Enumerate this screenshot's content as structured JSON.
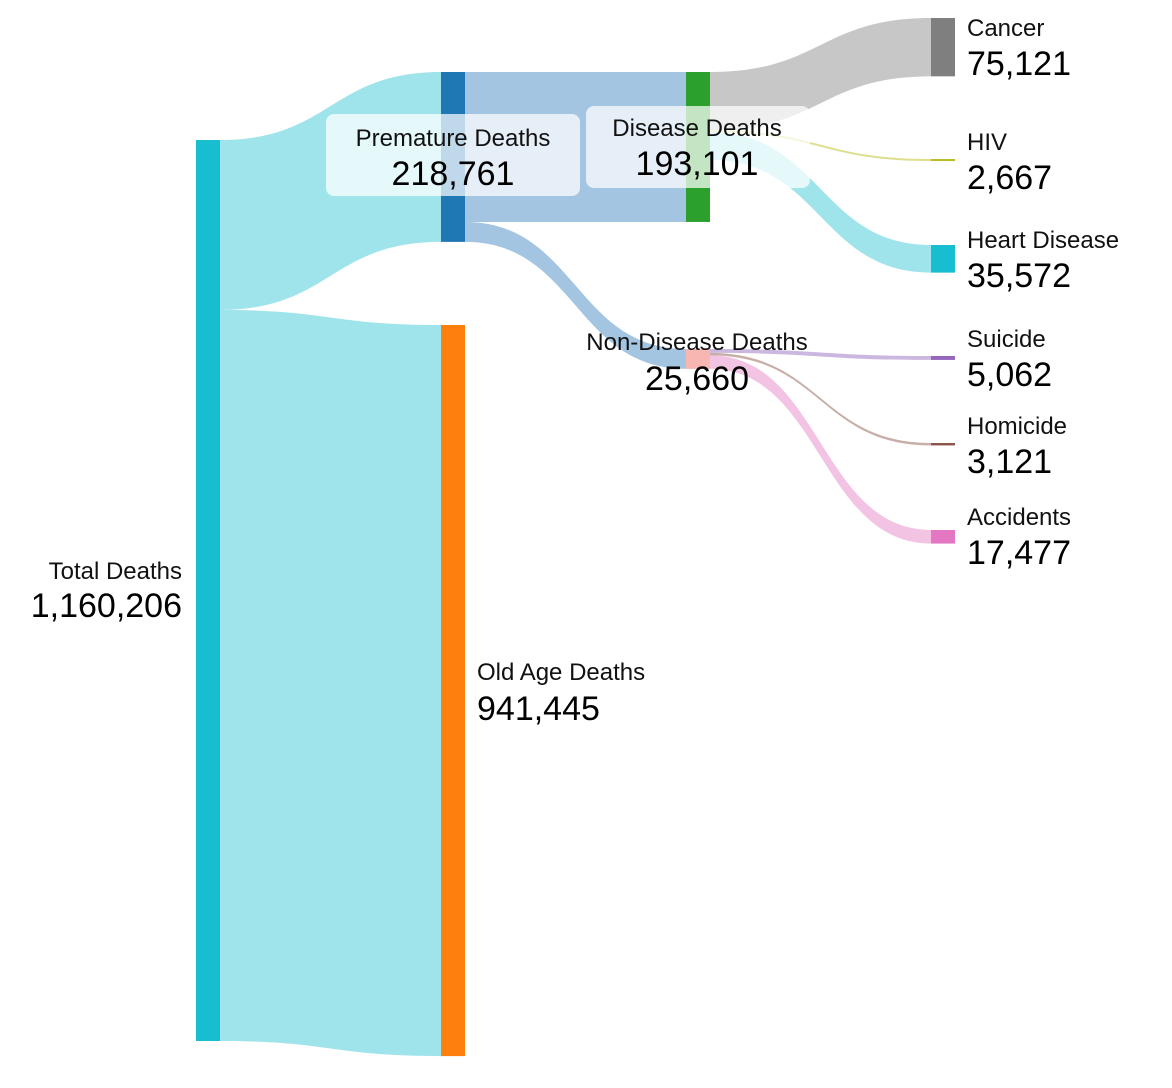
{
  "chart_data": {
    "type": "sankey",
    "title": "",
    "nodes": [
      {
        "id": "total",
        "name": "Total Deaths",
        "value": 1160206,
        "value_label": "1,160,206",
        "color": "#17becf",
        "column": 0
      },
      {
        "id": "premature",
        "name": "Premature Deaths",
        "value": 218761,
        "value_label": "218,761",
        "color": "#1f77b4",
        "column": 1
      },
      {
        "id": "oldage",
        "name": "Old Age Deaths",
        "value": 941445,
        "value_label": "941,445",
        "color": "#ff7f0e",
        "column": 1
      },
      {
        "id": "disease",
        "name": "Disease Deaths",
        "value": 193101,
        "value_label": "193,101",
        "color": "#2ca02c",
        "column": 2
      },
      {
        "id": "nondisease",
        "name": "Non-Disease Deaths",
        "value": 25660,
        "value_label": "25,660",
        "color": "#f7b6b2",
        "column": 2
      },
      {
        "id": "cancer",
        "name": "Cancer",
        "value": 75121,
        "value_label": "75,121",
        "color": "#7f7f7f",
        "column": 3
      },
      {
        "id": "hiv",
        "name": "HIV",
        "value": 2667,
        "value_label": "2,667",
        "color": "#bcbd22",
        "column": 3
      },
      {
        "id": "heart",
        "name": "Heart Disease",
        "value": 35572,
        "value_label": "35,572",
        "color": "#17becf",
        "column": 3
      },
      {
        "id": "suicide",
        "name": "Suicide",
        "value": 5062,
        "value_label": "5,062",
        "color": "#9467bd",
        "column": 3
      },
      {
        "id": "homicide",
        "name": "Homicide",
        "value": 3121,
        "value_label": "3,121",
        "color": "#8c564b",
        "column": 3
      },
      {
        "id": "accidents",
        "name": "Accidents",
        "value": 17477,
        "value_label": "17,477",
        "color": "#e377c2",
        "column": 3
      }
    ],
    "links": [
      {
        "source": "total",
        "target": "premature",
        "value": 218761,
        "color": "#9be3ea"
      },
      {
        "source": "total",
        "target": "oldage",
        "value": 941445,
        "color": "#9be3ea"
      },
      {
        "source": "premature",
        "target": "disease",
        "value": 193101,
        "color": "#9fc2e0"
      },
      {
        "source": "premature",
        "target": "nondisease",
        "value": 25660,
        "color": "#9fc2e0"
      },
      {
        "source": "disease",
        "target": "cancer",
        "value": 75121,
        "color": "#c4c4c4"
      },
      {
        "source": "disease",
        "target": "hiv",
        "value": 2667,
        "color": "#dcdc88"
      },
      {
        "source": "disease",
        "target": "heart",
        "value": 35572,
        "color": "#9be3ea"
      },
      {
        "source": "nondisease",
        "target": "suicide",
        "value": 5062,
        "color": "#c8b3dd"
      },
      {
        "source": "nondisease",
        "target": "homicide",
        "value": 3121,
        "color": "#c5aaa4"
      },
      {
        "source": "nondisease",
        "target": "accidents",
        "value": 17477,
        "color": "#f2c0e2"
      }
    ]
  }
}
